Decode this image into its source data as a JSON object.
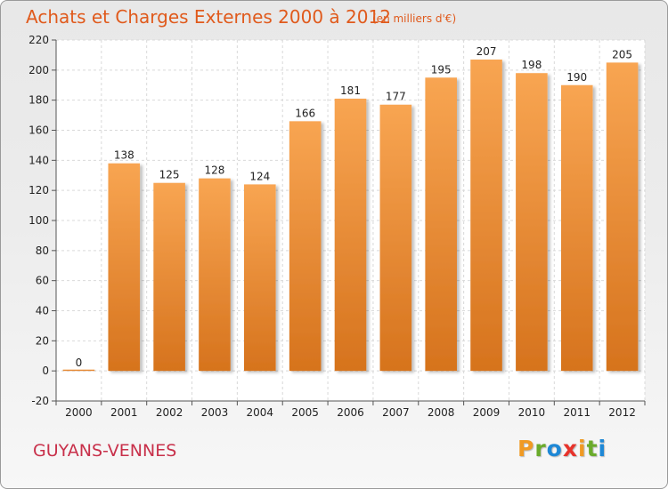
{
  "header": {
    "title": "Achats et Charges Externes 2000 à 2012",
    "subtitle": "(en milliers d'€)"
  },
  "footer": {
    "place": "GUYANS-VENNES",
    "logo": [
      "P",
      "r",
      "o",
      "x",
      "i",
      "t",
      "i"
    ]
  },
  "colors": {
    "accent": "#e05a1c",
    "place": "#c8304a",
    "bar_top": "#f8a552",
    "bar_bottom": "#d6731d",
    "logo": [
      "#f09a23",
      "#6aab2b",
      "#1e88d6",
      "#e7332b",
      "#f09a23",
      "#6aab2b",
      "#1e88d6"
    ]
  },
  "chart_data": {
    "type": "bar",
    "categories": [
      "2000",
      "2001",
      "2002",
      "2003",
      "2004",
      "2005",
      "2006",
      "2007",
      "2008",
      "2009",
      "2010",
      "2011",
      "2012"
    ],
    "values": [
      0,
      138,
      125,
      128,
      124,
      166,
      181,
      177,
      195,
      207,
      198,
      190,
      205
    ],
    "data_labels": [
      "0",
      "138",
      "125",
      "128",
      "124",
      "166",
      "181",
      "177",
      "195",
      "207",
      "198",
      "190",
      "205"
    ],
    "title": "Achats et Charges Externes 2000 à 2012",
    "subtitle": "(en milliers d'€)",
    "xlabel": "",
    "ylabel": "",
    "ylim": [
      -20,
      220
    ],
    "yticks": [
      -20,
      0,
      20,
      40,
      60,
      80,
      100,
      120,
      140,
      160,
      180,
      200,
      220
    ],
    "grid": true
  }
}
